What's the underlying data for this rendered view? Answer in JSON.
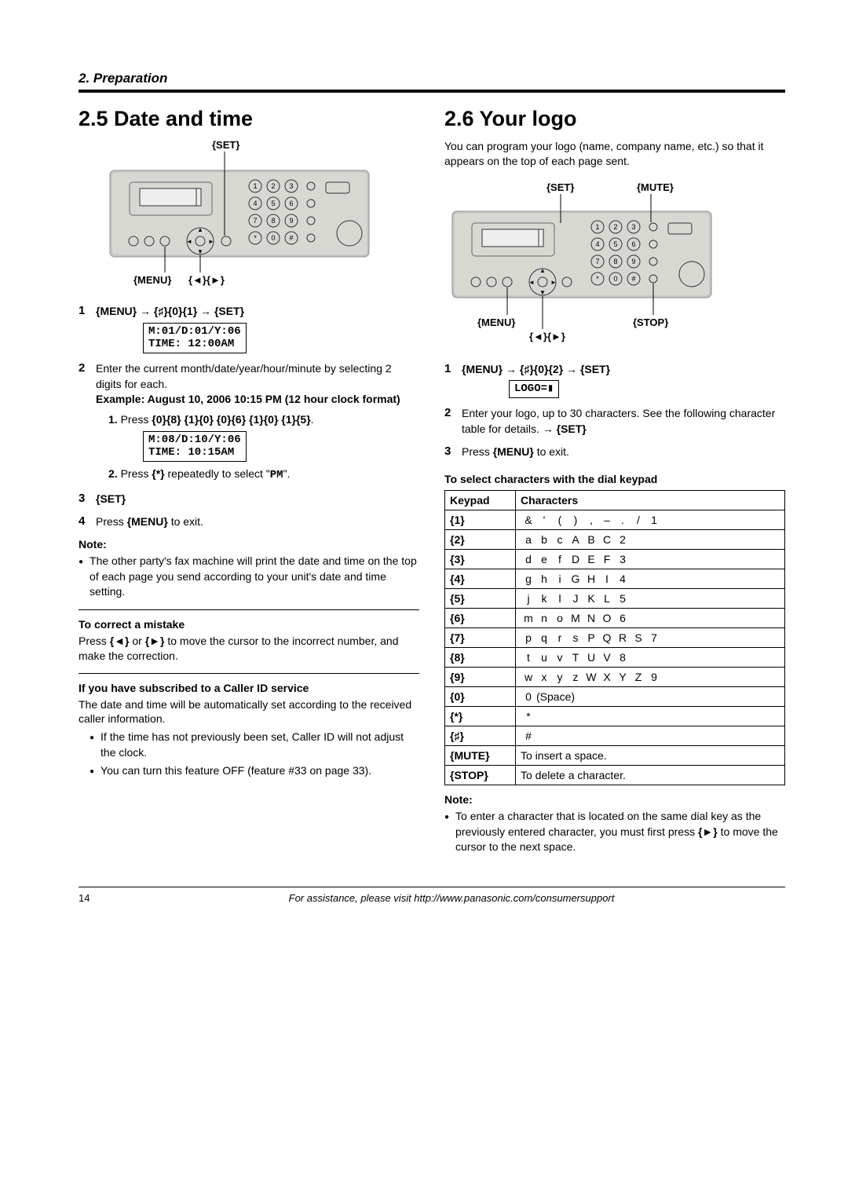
{
  "header": {
    "section": "2. Preparation"
  },
  "left": {
    "title": "2.5 Date and time",
    "labels": {
      "set": "{SET}",
      "menu": "{MENU}",
      "arrows": "{◄}{►}"
    },
    "step1": {
      "num": "1",
      "text": "{MENU} → {♯}{0}{1} → {SET}",
      "lcd": "M:01/D:01/Y:06\nTIME: 12:00AM"
    },
    "step2": {
      "num": "2",
      "intro": "Enter the current month/date/year/hour/minute by selecting 2 digits for each.",
      "example_head": "Example: August 10, 2006 10:15 PM (12 hour clock format)",
      "sub1_num": "1.",
      "sub1_text": "Press {0}{8} {1}{0} {0}{6} {1}{0} {1}{5}.",
      "lcd2": "M:08/D:10/Y:06\nTIME: 10:15AM",
      "sub2_num": "2.",
      "sub2_text_a": "Press {*} repeatedly to select \"",
      "sub2_pm": "PM",
      "sub2_text_b": "\"."
    },
    "step3": {
      "num": "3",
      "text": "{SET}"
    },
    "step4": {
      "num": "4",
      "text_a": "Press ",
      "text_b": "{MENU}",
      "text_c": " to exit."
    },
    "note_head": "Note:",
    "note_bullet": "The other party's fax machine will print the date and time on the top of each page you send according to your unit's date and time setting.",
    "correct_head": "To correct a mistake",
    "correct_text": "Press {◄} or {►} to move the cursor to the incorrect number, and make the correction.",
    "caller_head": "If you have subscribed to a Caller ID service",
    "caller_text": "The date and time will be automatically set according to the received caller information.",
    "caller_b1": "If the time has not previously been set, Caller ID will not adjust the clock.",
    "caller_b2": "You can turn this feature OFF (feature #33 on page 33)."
  },
  "right": {
    "title": "2.6 Your logo",
    "intro": "You can program your logo (name, company name, etc.) so that it appears on the top of each page sent.",
    "labels": {
      "set": "{SET}",
      "mute": "{MUTE}",
      "menu": "{MENU}",
      "stop": "{STOP}",
      "arrows": "{◄}{►}"
    },
    "step1": {
      "num": "1",
      "text": "{MENU} → {♯}{0}{2} → {SET}",
      "lcd": "LOGO=▮"
    },
    "step2": {
      "num": "2",
      "text_a": "Enter your logo, up to 30 characters. See the following character table for details. → ",
      "text_b": "{SET}"
    },
    "step3": {
      "num": "3",
      "text_a": "Press ",
      "text_b": "{MENU}",
      "text_c": " to exit."
    },
    "table_head": "To select characters with the dial keypad",
    "th_keypad": "Keypad",
    "th_chars": "Characters",
    "rows": [
      {
        "k": "{1}",
        "c": [
          "&",
          "'",
          "(",
          ")",
          ",",
          "–",
          ".",
          "/",
          "1"
        ]
      },
      {
        "k": "{2}",
        "c": [
          "a",
          "b",
          "c",
          "A",
          "B",
          "C",
          "2"
        ]
      },
      {
        "k": "{3}",
        "c": [
          "d",
          "e",
          "f",
          "D",
          "E",
          "F",
          "3"
        ]
      },
      {
        "k": "{4}",
        "c": [
          "g",
          "h",
          "i",
          "G",
          "H",
          "I",
          "4"
        ]
      },
      {
        "k": "{5}",
        "c": [
          "j",
          "k",
          "l",
          "J",
          "K",
          "L",
          "5"
        ]
      },
      {
        "k": "{6}",
        "c": [
          "m",
          "n",
          "o",
          "M",
          "N",
          "O",
          "6"
        ]
      },
      {
        "k": "{7}",
        "c": [
          "p",
          "q",
          "r",
          "s",
          "P",
          "Q",
          "R",
          "S",
          "7"
        ]
      },
      {
        "k": "{8}",
        "c": [
          "t",
          "u",
          "v",
          "T",
          "U",
          "V",
          "8"
        ]
      },
      {
        "k": "{9}",
        "c": [
          "w",
          "x",
          "y",
          "z",
          "W",
          "X",
          "Y",
          "Z",
          "9"
        ]
      },
      {
        "k": "{0}",
        "c": [
          "0",
          "(Space)"
        ]
      },
      {
        "k": "{*}",
        "c": [
          "*"
        ]
      },
      {
        "k": "{♯}",
        "c": [
          "#"
        ]
      },
      {
        "k": "{MUTE}",
        "full": "To insert a space."
      },
      {
        "k": "{STOP}",
        "full": "To delete a character."
      }
    ],
    "note_head": "Note:",
    "note_bullet": "To enter a character that is located on the same dial key as the previously entered character, you must first press {►} to move the cursor to the next space."
  },
  "footer": {
    "page": "14",
    "text": "For assistance, please visit http://www.panasonic.com/consumersupport"
  }
}
